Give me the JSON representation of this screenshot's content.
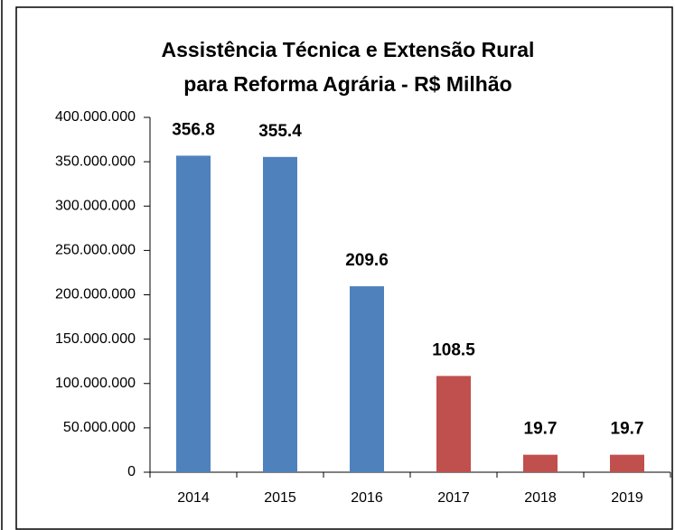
{
  "chart_data": {
    "type": "bar",
    "title": [
      "Assistência Técnica e Extensão Rural",
      "para Reforma Agrária - R$ Milhão"
    ],
    "categories": [
      "2014",
      "2015",
      "2016",
      "2017",
      "2018",
      "2019"
    ],
    "values": [
      356800000,
      355400000,
      209600000,
      108500000,
      19700000,
      19700000
    ],
    "value_labels": [
      "356.8",
      "355.4",
      "209.6",
      "108.5",
      "19.7",
      "19.7"
    ],
    "colors": [
      "#4f81bd",
      "#4f81bd",
      "#4f81bd",
      "#c0504d",
      "#c0504d",
      "#c0504d"
    ],
    "ylim": [
      0,
      400000000
    ],
    "yticks": [
      0,
      {
        "value": 50000000,
        "label": "50.000.000"
      },
      {
        "value": 100000000,
        "label": "100.000.000"
      },
      {
        "value": 150000000,
        "label": "150.000.000"
      },
      {
        "value": 200000000,
        "label": "200.000.000"
      },
      {
        "value": 250000000,
        "label": "250.000.000"
      },
      {
        "value": 300000000,
        "label": "300.000.000"
      },
      {
        "value": 350000000,
        "label": "350.000.000"
      },
      {
        "value": 400000000,
        "label": "400.000.000"
      }
    ],
    "grid": false
  }
}
